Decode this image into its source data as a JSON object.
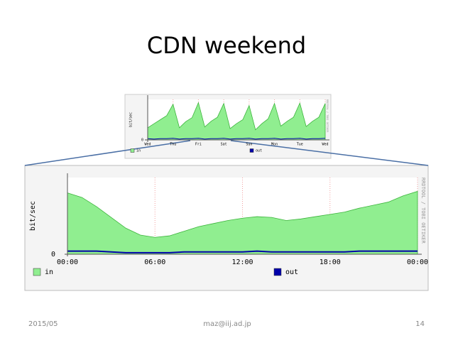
{
  "slide": {
    "title": "CDN weekend",
    "date": "2015/05",
    "author": "maz@iij.ad.jp",
    "page": "14"
  },
  "chart_data": [
    {
      "type": "area",
      "y_label": "bit/sec",
      "watermark": "RRDTOOL / TOBI OETIKER",
      "x": [
        0,
        0.25,
        0.5,
        0.75,
        1,
        1.25,
        1.5,
        1.75,
        2,
        2.25,
        2.5,
        2.75,
        3,
        3.25,
        3.5,
        3.75,
        4,
        4.25,
        4.5,
        4.75,
        5,
        5.25,
        5.5,
        5.75,
        6,
        6.25,
        6.5,
        6.75,
        7
      ],
      "xlim": [
        0,
        7
      ],
      "xticks": [
        {
          "value": 0,
          "label": "Wed"
        },
        {
          "value": 1,
          "label": "Thu"
        },
        {
          "value": 2,
          "label": "Fri"
        },
        {
          "value": 3,
          "label": "Sat"
        },
        {
          "value": 4,
          "label": "Sun"
        },
        {
          "value": 5,
          "label": "Mon"
        },
        {
          "value": 6,
          "label": "Tue"
        },
        {
          "value": 7,
          "label": "Wed"
        }
      ],
      "ylim": [
        0,
        100
      ],
      "yticks": [
        0
      ],
      "grid": true,
      "series": [
        {
          "name": "in",
          "color": "#90ee90",
          "edge": "#3cb43c",
          "values": [
            30,
            40,
            50,
            60,
            88,
            30,
            45,
            55,
            92,
            32,
            46,
            56,
            90,
            28,
            40,
            50,
            85,
            25,
            40,
            52,
            90,
            34,
            46,
            56,
            91,
            33,
            46,
            56,
            90
          ]
        },
        {
          "name": "out",
          "color": "#0000aa",
          "values": [
            3,
            2,
            3,
            3,
            4,
            2,
            3,
            3,
            4,
            2,
            3,
            3,
            4,
            2,
            3,
            3,
            4,
            2,
            3,
            3,
            4,
            2,
            3,
            3,
            4,
            2,
            3,
            3,
            4
          ]
        }
      ]
    },
    {
      "type": "area",
      "y_label": "bit/sec",
      "watermark": "RRDTOOL / TOBI OETIKER",
      "x": [
        0,
        1,
        2,
        3,
        4,
        5,
        6,
        7,
        8,
        9,
        10,
        11,
        12,
        13,
        14,
        15,
        16,
        17,
        18,
        19,
        20,
        21,
        22,
        23,
        24
      ],
      "xlim": [
        0,
        24
      ],
      "xticks": [
        {
          "value": 0,
          "label": "00:00"
        },
        {
          "value": 6,
          "label": "06:00"
        },
        {
          "value": 12,
          "label": "12:00"
        },
        {
          "value": 18,
          "label": "18:00"
        },
        {
          "value": 24,
          "label": "00:00"
        }
      ],
      "ylim": [
        0,
        100
      ],
      "yticks": [
        0
      ],
      "grid": true,
      "series": [
        {
          "name": "in",
          "color": "#90ee90",
          "edge": "#3cb43c",
          "values": [
            80,
            74,
            62,
            48,
            34,
            25,
            22,
            24,
            30,
            36,
            40,
            44,
            47,
            49,
            48,
            44,
            46,
            49,
            52,
            55,
            60,
            64,
            68,
            76,
            82
          ]
        },
        {
          "name": "out",
          "color": "#0000aa",
          "values": [
            4,
            4,
            4,
            3,
            2,
            2,
            2,
            2,
            3,
            3,
            3,
            3,
            3,
            4,
            3,
            3,
            3,
            3,
            3,
            3,
            4,
            4,
            4,
            4,
            4
          ]
        }
      ]
    }
  ]
}
